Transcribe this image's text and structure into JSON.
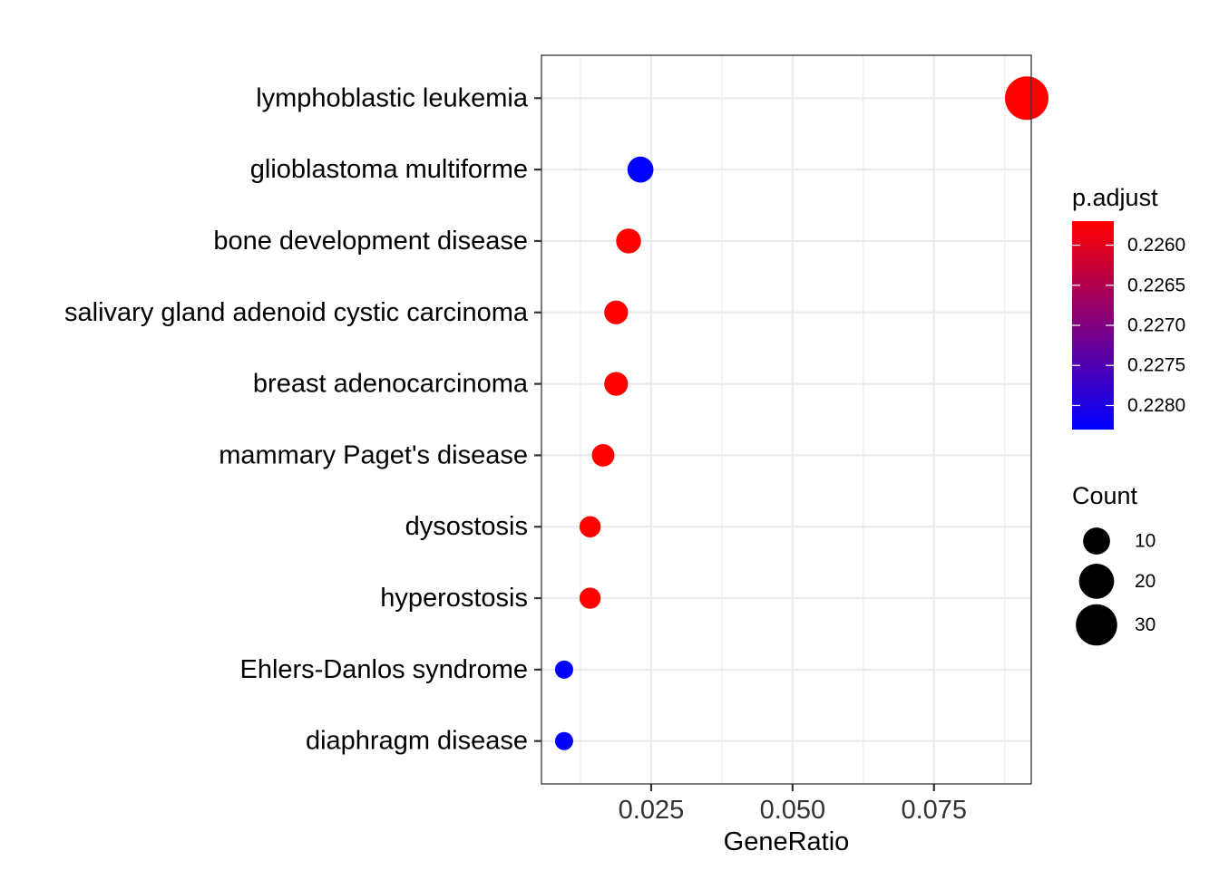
{
  "chart_data": {
    "type": "scatter",
    "xlabel": "GeneRatio",
    "ylabel": "",
    "xlim": [
      0.0056,
      0.0922
    ],
    "x_ticks": [
      {
        "value": 0.025,
        "label": "0.025"
      },
      {
        "value": 0.05,
        "label": "0.050"
      },
      {
        "value": 0.075,
        "label": "0.075"
      }
    ],
    "grid": true,
    "categories": [
      "lymphoblastic leukemia",
      "glioblastoma multiforme",
      "bone development disease",
      "salivary gland adenoid cystic carcinoma",
      "breast adenocarcinoma",
      "mammary Paget's disease",
      "dysostosis",
      "hyperostosis",
      "Ehlers-Danlos syndrome",
      "diaphragm disease"
    ],
    "points": [
      {
        "term": "lymphoblastic leukemia",
        "gene_ratio": 0.0914,
        "count": 34,
        "p_adjust": 0.2257
      },
      {
        "term": "glioblastoma multiforme",
        "gene_ratio": 0.0231,
        "count": 9,
        "p_adjust": 0.2283
      },
      {
        "term": "bone development disease",
        "gene_ratio": 0.021,
        "count": 8,
        "p_adjust": 0.2257
      },
      {
        "term": "salivary gland adenoid cystic carcinoma",
        "gene_ratio": 0.0188,
        "count": 7,
        "p_adjust": 0.2257
      },
      {
        "term": "breast adenocarcinoma",
        "gene_ratio": 0.0188,
        "count": 7,
        "p_adjust": 0.2257
      },
      {
        "term": "mammary Paget's disease",
        "gene_ratio": 0.0165,
        "count": 6,
        "p_adjust": 0.2257
      },
      {
        "term": "dysostosis",
        "gene_ratio": 0.0142,
        "count": 5,
        "p_adjust": 0.2257
      },
      {
        "term": "hyperostosis",
        "gene_ratio": 0.0142,
        "count": 5,
        "p_adjust": 0.2257
      },
      {
        "term": "Ehlers-Danlos syndrome",
        "gene_ratio": 0.0096,
        "count": 3,
        "p_adjust": 0.2283
      },
      {
        "term": "diaphragm disease",
        "gene_ratio": 0.0096,
        "count": 3,
        "p_adjust": 0.2283
      }
    ],
    "color_legend": {
      "title": "p.adjust",
      "range": [
        0.2257,
        0.2283
      ],
      "low_color": "#ff0000",
      "high_color": "#0000ff",
      "ticks": [
        {
          "value": 0.226,
          "label": "0.2260"
        },
        {
          "value": 0.2265,
          "label": "0.2265"
        },
        {
          "value": 0.227,
          "label": "0.2270"
        },
        {
          "value": 0.2275,
          "label": "0.2275"
        },
        {
          "value": 0.228,
          "label": "0.2280"
        }
      ]
    },
    "size_legend": {
      "title": "Count",
      "entries": [
        {
          "value": 10,
          "label": "10"
        },
        {
          "value": 20,
          "label": "20"
        },
        {
          "value": 30,
          "label": "30"
        }
      ]
    }
  }
}
